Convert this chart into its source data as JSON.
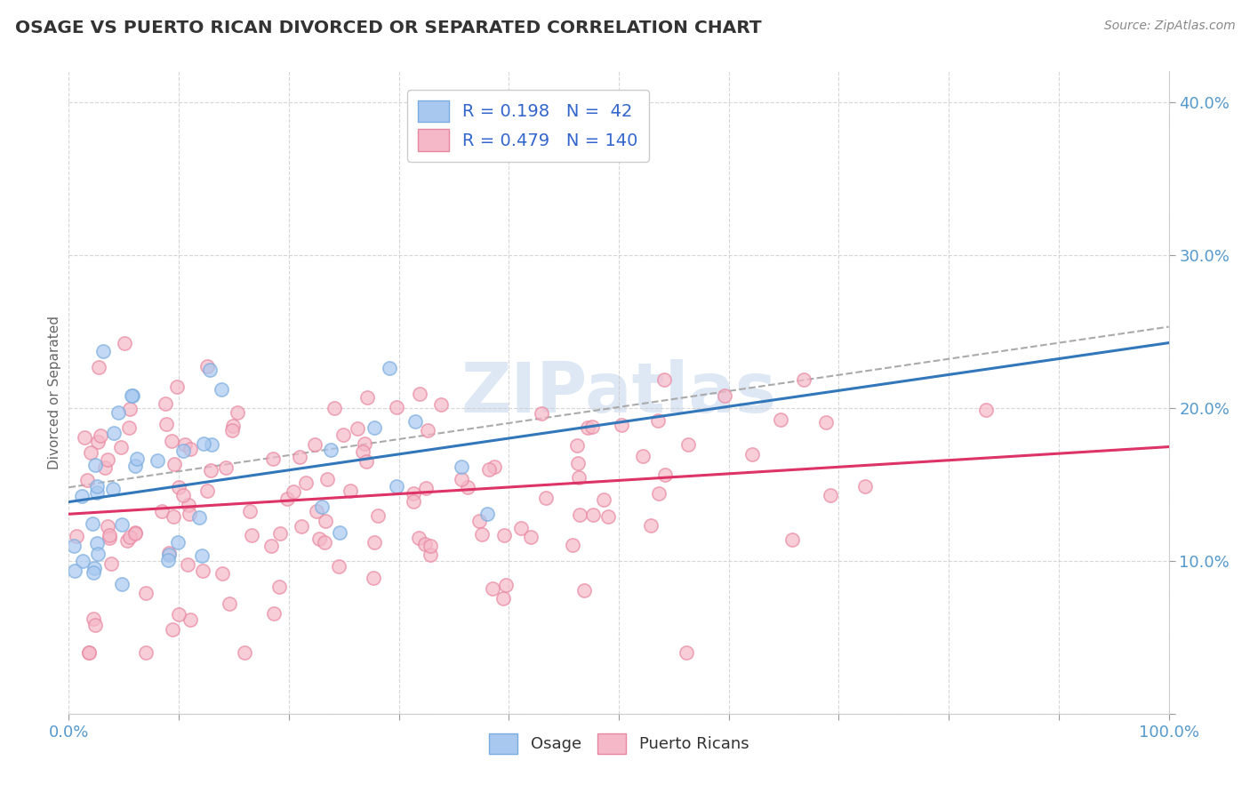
{
  "title": "OSAGE VS PUERTO RICAN DIVORCED OR SEPARATED CORRELATION CHART",
  "source": "Source: ZipAtlas.com",
  "ylabel": "Divorced or Separated",
  "legend_bottom": [
    "Osage",
    "Puerto Ricans"
  ],
  "osage_R": 0.198,
  "osage_N": 42,
  "pr_R": 0.479,
  "pr_N": 140,
  "xlim": [
    0,
    1.0
  ],
  "ylim": [
    0,
    0.42
  ],
  "osage_color": "#a8c8f0",
  "osage_edge_color": "#7aaddf",
  "pr_color": "#f5b8c8",
  "pr_edge_color": "#e888a0",
  "osage_line_color": "#3377bb",
  "pr_line_color": "#dd3366",
  "dash_line_color": "#aaaaaa",
  "background": "#ffffff",
  "grid_color": "#cccccc",
  "title_color": "#333333",
  "source_color": "#888888",
  "axis_label_color": "#5599cc",
  "watermark_color": "#c8d8ee",
  "legend_R_color": "#3366cc",
  "legend_N_color": "#3366cc",
  "watermark": "ZIPatlas"
}
